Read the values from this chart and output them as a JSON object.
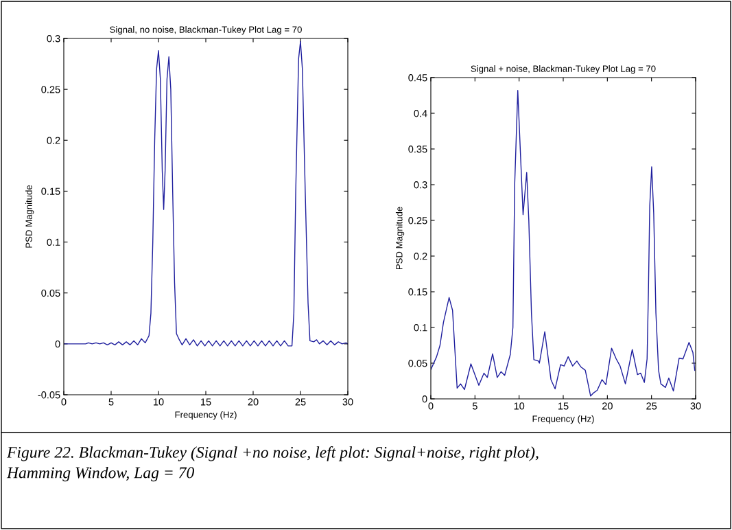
{
  "chart_data": [
    {
      "type": "line",
      "title": "Signal, no noise, Blackman-Tukey Plot Lag = 70",
      "xlabel": "Frequency (Hz)",
      "ylabel": "PSD Magnitude",
      "xlim": [
        0,
        30
      ],
      "ylim": [
        -0.05,
        0.3
      ],
      "xticks": [
        0,
        5,
        10,
        15,
        20,
        25,
        30
      ],
      "yticks": [
        -0.05,
        0,
        0.05,
        0.1,
        0.15,
        0.2,
        0.25,
        0.3
      ],
      "grid": false,
      "series": [
        {
          "color": "#1f1f9e",
          "x": [
            0,
            2.3,
            2.6,
            3,
            3.4,
            3.8,
            4.2,
            4.6,
            5,
            5.4,
            5.8,
            6.2,
            6.6,
            7,
            7.4,
            7.8,
            8.2,
            8.6,
            9,
            9.2,
            9.4,
            9.6,
            9.8,
            10,
            10.2,
            10.4,
            10.55,
            10.7,
            10.9,
            11.1,
            11.3,
            11.5,
            11.7,
            11.9,
            12.2,
            12.5,
            12.9,
            13.3,
            13.7,
            14.1,
            14.5,
            14.9,
            15.3,
            15.7,
            16.1,
            16.5,
            16.9,
            17.3,
            17.7,
            18.1,
            18.5,
            18.9,
            19.3,
            19.7,
            20.1,
            20.5,
            20.9,
            21.3,
            21.7,
            22.1,
            22.5,
            22.9,
            23.3,
            23.7,
            24.1,
            24.3,
            24.5,
            24.8,
            25,
            25.2,
            25.5,
            25.8,
            26,
            26.4,
            26.7,
            27,
            27.4,
            27.8,
            28.2,
            28.6,
            29,
            29.4,
            29.8,
            30
          ],
          "values": [
            0,
            0,
            0.001,
            0,
            0.001,
            0,
            0.001,
            -0.001,
            0.001,
            -0.001,
            0.002,
            -0.001,
            0.002,
            -0.001,
            0.003,
            -0.001,
            0.005,
            0.001,
            0.008,
            0.03,
            0.1,
            0.2,
            0.27,
            0.288,
            0.26,
            0.17,
            0.132,
            0.17,
            0.26,
            0.282,
            0.25,
            0.15,
            0.06,
            0.01,
            0.004,
            -0.001,
            0.005,
            -0.001,
            0.004,
            -0.002,
            0.003,
            -0.002,
            0.003,
            -0.002,
            0.003,
            -0.002,
            0.003,
            -0.002,
            0.003,
            -0.002,
            0.003,
            -0.002,
            0.003,
            -0.002,
            0.003,
            -0.002,
            0.003,
            -0.002,
            0.003,
            -0.002,
            0.003,
            -0.002,
            0.003,
            -0.002,
            -0.002,
            0.03,
            0.15,
            0.28,
            0.297,
            0.27,
            0.15,
            0.04,
            0.003,
            0.002,
            0.004,
            0,
            0.003,
            -0.001,
            0.003,
            -0.001,
            0.002,
            0,
            0.001,
            0
          ]
        }
      ],
      "annotations": [
        "Figure 22. Blackman-Tukey (Signal +no noise, left plot: Signal+noise, right plot),\nHamming Window, Lag = 70"
      ]
    },
    {
      "type": "line",
      "title": "Signal + noise, Blackman-Tukey Plot Lag = 70",
      "xlabel": "Frequency (Hz)",
      "ylabel": "PSD Magnitude",
      "xlim": [
        0,
        30
      ],
      "ylim": [
        0,
        0.45
      ],
      "xticks": [
        0,
        5,
        10,
        15,
        20,
        25,
        30
      ],
      "yticks": [
        0,
        0.05,
        0.1,
        0.15,
        0.2,
        0.25,
        0.3,
        0.35,
        0.4,
        0.45
      ],
      "grid": false,
      "series": [
        {
          "color": "#1f1f9e",
          "x": [
            0,
            0.65,
            1.04,
            1.43,
            2.07,
            2.46,
            2.98,
            3.37,
            3.81,
            4.54,
            5.44,
            6.02,
            6.4,
            7.0,
            7.52,
            7.96,
            8.37,
            9.0,
            9.3,
            9.5,
            9.85,
            10.2,
            10.45,
            10.86,
            11.1,
            11.4,
            11.67,
            12.19,
            12.3,
            12.91,
            13.61,
            14.08,
            14.7,
            15.1,
            15.56,
            16.07,
            16.54,
            16.98,
            17.5,
            18.1,
            18.4,
            18.85,
            19.39,
            19.83,
            20.48,
            21.0,
            21.44,
            22.04,
            22.82,
            23.41,
            23.77,
            24.19,
            24.5,
            24.65,
            24.8,
            25.02,
            25.25,
            25.5,
            25.8,
            26.06,
            26.58,
            26.96,
            27.48,
            28.13,
            28.57,
            29.25,
            29.69,
            29.9
          ],
          "values": [
            0.041,
            0.059,
            0.075,
            0.107,
            0.142,
            0.124,
            0.015,
            0.021,
            0.013,
            0.049,
            0.019,
            0.036,
            0.03,
            0.063,
            0.03,
            0.038,
            0.033,
            0.062,
            0.1,
            0.3,
            0.432,
            0.33,
            0.258,
            0.317,
            0.25,
            0.12,
            0.055,
            0.053,
            0.05,
            0.094,
            0.027,
            0.014,
            0.048,
            0.046,
            0.059,
            0.046,
            0.053,
            0.045,
            0.04,
            0.004,
            0.008,
            0.012,
            0.027,
            0.02,
            0.071,
            0.056,
            0.046,
            0.021,
            0.069,
            0.034,
            0.036,
            0.023,
            0.056,
            0.15,
            0.27,
            0.325,
            0.26,
            0.12,
            0.04,
            0.021,
            0.016,
            0.029,
            0.011,
            0.057,
            0.056,
            0.079,
            0.065,
            0.04
          ]
        }
      ]
    }
  ]
}
